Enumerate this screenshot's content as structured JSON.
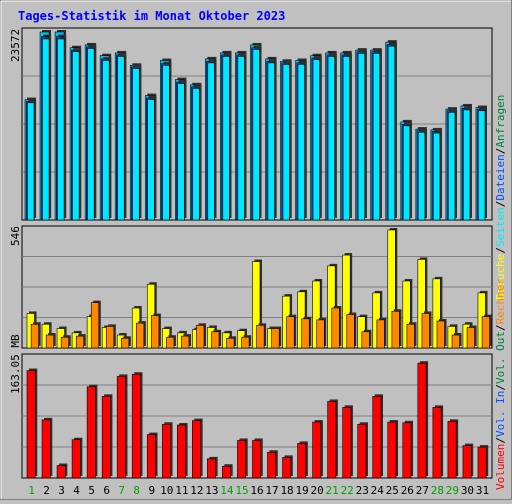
{
  "page": {
    "title": "Tages-Statistik im Monat Oktober 2023"
  },
  "colors": {
    "background": "#c0c0c0",
    "title": "#0000ff",
    "hits": "#00c8f0",
    "files": "#0050ff",
    "pages": "#00e8ff",
    "visits": "#ffff00",
    "sites": "#ff8800",
    "volume": "#ff0000",
    "weekend": "#00a000"
  },
  "chart_data": [
    {
      "type": "bar",
      "panel": "hits",
      "categories": [
        "1",
        "2",
        "3",
        "4",
        "5",
        "6",
        "7",
        "8",
        "9",
        "10",
        "11",
        "12",
        "13",
        "14",
        "15",
        "16",
        "17",
        "18",
        "19",
        "20",
        "21",
        "22",
        "23",
        "24",
        "25",
        "26",
        "27",
        "28",
        "29",
        "30",
        "31"
      ],
      "weekend_days": [
        "1",
        "7",
        "8",
        "14",
        "15",
        "21",
        "22",
        "28",
        "29"
      ],
      "ymax_label": "23572",
      "ylim": [
        0,
        23572
      ],
      "series": [
        {
          "name": "Anfragen",
          "values": [
            15100,
            23572,
            23572,
            21600,
            21950,
            20600,
            20950,
            19400,
            15600,
            20000,
            17600,
            16950,
            20200,
            20950,
            20950,
            21950,
            20200,
            19900,
            20000,
            20600,
            20950,
            20950,
            21300,
            21300,
            22300,
            12300,
            11400,
            11300,
            13900,
            14300,
            14100
          ]
        },
        {
          "name": "Dateien",
          "values": [
            14900,
            23000,
            23000,
            21300,
            21700,
            20200,
            20700,
            19200,
            15300,
            19600,
            17300,
            16700,
            19900,
            20700,
            20700,
            21600,
            19900,
            19700,
            19700,
            20300,
            20700,
            20700,
            21100,
            21100,
            22000,
            12000,
            11200,
            11100,
            13700,
            14000,
            13900
          ]
        },
        {
          "name": "Seiten",
          "values": [
            14700,
            22700,
            22700,
            21100,
            21500,
            20000,
            20500,
            19000,
            15100,
            19400,
            17100,
            16500,
            19700,
            20500,
            20500,
            21400,
            19700,
            19500,
            19500,
            20100,
            20500,
            20500,
            20900,
            20900,
            21800,
            11800,
            11000,
            10900,
            13500,
            13800,
            13700
          ]
        }
      ],
      "legend_right": [
        "Anfragen",
        "/",
        "Dateien",
        "/",
        "Seiten",
        "/",
        "Besuche"
      ]
    },
    {
      "type": "bar",
      "panel": "visits",
      "ymax_label": "546",
      "ylim": [
        0,
        546
      ],
      "series": [
        {
          "name": "Besuche",
          "values": [
            160,
            110,
            90,
            70,
            145,
            95,
            60,
            185,
            295,
            90,
            70,
            85,
            95,
            70,
            80,
            400,
            90,
            240,
            260,
            310,
            380,
            430,
            145,
            255,
            546,
            310,
            410,
            320,
            100,
            110,
            255
          ]
        },
        {
          "name": "Rechner",
          "values": [
            110,
            60,
            50,
            55,
            210,
            100,
            45,
            115,
            150,
            50,
            55,
            105,
            75,
            45,
            50,
            105,
            90,
            145,
            135,
            130,
            185,
            155,
            75,
            130,
            170,
            110,
            160,
            125,
            60,
            95,
            145
          ]
        }
      ],
      "legend_right": [
        "Rechner",
        "/",
        "Vol. Out",
        "/",
        "Vol. In",
        "/",
        "Volumen"
      ]
    },
    {
      "type": "bar",
      "panel": "volume",
      "ymax_label": "163.05 MB",
      "ylim": [
        0,
        163.05
      ],
      "series": [
        {
          "name": "Volumen",
          "values": [
            146,
            79,
            17,
            52,
            124,
            111,
            138,
            141,
            59,
            73,
            72,
            78,
            26,
            16,
            51,
            51,
            35,
            28,
            47,
            76,
            104,
            96,
            73,
            111,
            76,
            75,
            156,
            96,
            77,
            44,
            42
          ]
        }
      ]
    }
  ]
}
